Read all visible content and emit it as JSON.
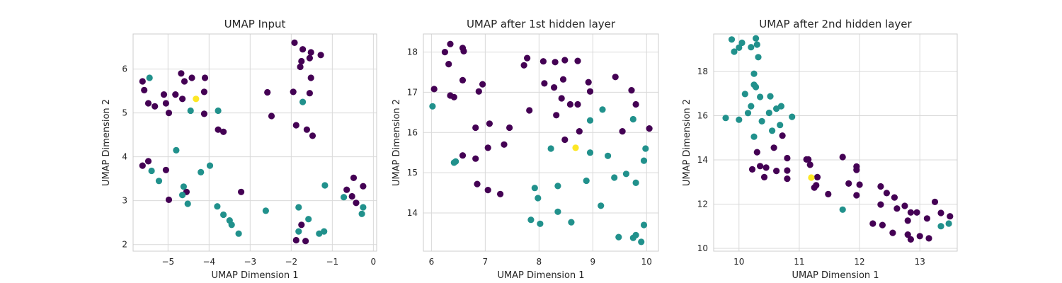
{
  "colors": {
    "class0": "#440154",
    "class1": "#21918c",
    "class2": "#fde725",
    "grid": "#d9d9d9",
    "frame": "#cccccc",
    "text": "#262626"
  },
  "chart_data": [
    {
      "type": "scatter",
      "title": "UMAP Input",
      "xlabel": "UMAP Dimension 1",
      "ylabel": "UMAP Dimension 2",
      "xlim": [
        -5.85,
        0.08
      ],
      "ylim": [
        1.85,
        6.8
      ],
      "xticks": [
        -5,
        -4,
        -3,
        -2,
        -1,
        0
      ],
      "xtick_labels": [
        "−5",
        "−4",
        "−3",
        "−2",
        "−1",
        "0"
      ],
      "yticks": [
        2,
        3,
        4,
        5,
        6
      ],
      "ytick_labels": [
        "2",
        "3",
        "4",
        "5",
        "6"
      ],
      "grid": true,
      "points": [
        [
          -5.62,
          5.72,
          0
        ],
        [
          -5.58,
          5.52,
          0
        ],
        [
          -5.48,
          5.22,
          0
        ],
        [
          -5.32,
          5.15,
          0
        ],
        [
          -5.1,
          5.42,
          0
        ],
        [
          -5.05,
          5.22,
          0
        ],
        [
          -4.98,
          5.0,
          0
        ],
        [
          -4.82,
          5.42,
          0
        ],
        [
          -4.68,
          5.9,
          0
        ],
        [
          -4.6,
          5.72,
          0
        ],
        [
          -4.42,
          5.8,
          0
        ],
        [
          -4.65,
          5.32,
          0
        ],
        [
          -4.1,
          5.8,
          0
        ],
        [
          -4.12,
          5.48,
          0
        ],
        [
          -4.12,
          4.98,
          0
        ],
        [
          -3.78,
          4.62,
          0
        ],
        [
          -3.65,
          4.57,
          0
        ],
        [
          -2.58,
          5.47,
          0
        ],
        [
          -2.48,
          4.93,
          0
        ],
        [
          -1.92,
          6.6,
          0
        ],
        [
          -1.72,
          6.45,
          0
        ],
        [
          -1.52,
          6.38,
          0
        ],
        [
          -1.55,
          6.25,
          0
        ],
        [
          -1.28,
          6.32,
          0
        ],
        [
          -1.75,
          6.18,
          0
        ],
        [
          -1.78,
          6.05,
          0
        ],
        [
          -1.95,
          5.48,
          0
        ],
        [
          -1.52,
          5.8,
          0
        ],
        [
          -1.55,
          5.45,
          0
        ],
        [
          -1.88,
          4.72,
          0
        ],
        [
          -1.62,
          4.62,
          0
        ],
        [
          -1.48,
          4.48,
          0
        ],
        [
          -5.62,
          3.8,
          0
        ],
        [
          -5.48,
          3.9,
          0
        ],
        [
          -5.05,
          3.7,
          0
        ],
        [
          -4.55,
          3.2,
          0
        ],
        [
          -4.98,
          3.02,
          0
        ],
        [
          -3.22,
          3.2,
          0
        ],
        [
          -0.48,
          3.52,
          0
        ],
        [
          -0.65,
          3.25,
          0
        ],
        [
          -0.52,
          3.1,
          0
        ],
        [
          -0.25,
          3.33,
          0
        ],
        [
          -0.42,
          2.95,
          0
        ],
        [
          -1.75,
          2.45,
          0
        ],
        [
          -1.88,
          2.1,
          0
        ],
        [
          -1.65,
          2.08,
          0
        ],
        [
          -5.45,
          5.8,
          1
        ],
        [
          -4.45,
          5.05,
          1
        ],
        [
          -3.78,
          5.05,
          1
        ],
        [
          -1.72,
          5.25,
          1
        ],
        [
          -4.8,
          4.15,
          1
        ],
        [
          -5.4,
          3.68,
          1
        ],
        [
          -5.22,
          3.45,
          1
        ],
        [
          -4.62,
          3.32,
          1
        ],
        [
          -4.52,
          2.93,
          1
        ],
        [
          -4.65,
          3.13,
          1
        ],
        [
          -4.2,
          3.65,
          1
        ],
        [
          -3.98,
          3.8,
          1
        ],
        [
          -3.8,
          2.87,
          1
        ],
        [
          -3.65,
          2.68,
          1
        ],
        [
          -3.5,
          2.55,
          1
        ],
        [
          -3.45,
          2.45,
          1
        ],
        [
          -3.28,
          2.25,
          1
        ],
        [
          -2.62,
          2.77,
          1
        ],
        [
          -1.82,
          2.85,
          1
        ],
        [
          -1.82,
          2.3,
          1
        ],
        [
          -1.58,
          2.58,
          1
        ],
        [
          -1.32,
          2.25,
          1
        ],
        [
          -1.2,
          2.3,
          1
        ],
        [
          -1.18,
          3.35,
          1
        ],
        [
          -0.72,
          3.08,
          1
        ],
        [
          -0.25,
          2.85,
          1
        ],
        [
          -0.28,
          2.7,
          1
        ],
        [
          -4.32,
          5.32,
          2
        ]
      ]
    },
    {
      "type": "scatter",
      "title": "UMAP after 1st hidden layer",
      "xlabel": "UMAP Dimension 1",
      "ylabel": "UMAP Dimension 2",
      "xlim": [
        5.85,
        10.22
      ],
      "ylim": [
        13.05,
        18.45
      ],
      "xticks": [
        6,
        7,
        8,
        9,
        10
      ],
      "xtick_labels": [
        "6",
        "7",
        "8",
        "9",
        "10"
      ],
      "yticks": [
        14,
        15,
        16,
        17,
        18
      ],
      "ytick_labels": [
        "14",
        "15",
        "16",
        "17",
        "18"
      ],
      "grid": true,
      "points": [
        [
          6.05,
          17.08,
          0
        ],
        [
          6.25,
          18.0,
          0
        ],
        [
          6.35,
          18.2,
          0
        ],
        [
          6.32,
          17.7,
          0
        ],
        [
          6.35,
          16.92,
          0
        ],
        [
          6.42,
          16.88,
          0
        ],
        [
          6.58,
          18.1,
          0
        ],
        [
          6.6,
          18.02,
          0
        ],
        [
          6.58,
          17.3,
          0
        ],
        [
          6.88,
          17.02,
          0
        ],
        [
          6.95,
          17.2,
          0
        ],
        [
          6.82,
          16.12,
          0
        ],
        [
          7.08,
          16.22,
          0
        ],
        [
          7.05,
          15.62,
          0
        ],
        [
          6.58,
          15.43,
          0
        ],
        [
          6.82,
          15.35,
          0
        ],
        [
          7.45,
          16.12,
          0
        ],
        [
          7.35,
          15.7,
          0
        ],
        [
          6.85,
          14.72,
          0
        ],
        [
          7.05,
          14.57,
          0
        ],
        [
          7.28,
          14.47,
          0
        ],
        [
          7.72,
          17.67,
          0
        ],
        [
          7.78,
          17.85,
          0
        ],
        [
          7.82,
          16.55,
          0
        ],
        [
          8.08,
          17.77,
          0
        ],
        [
          8.1,
          17.22,
          0
        ],
        [
          8.3,
          17.75,
          0
        ],
        [
          8.48,
          17.8,
          0
        ],
        [
          8.72,
          17.78,
          0
        ],
        [
          8.28,
          17.12,
          0
        ],
        [
          8.45,
          17.32,
          0
        ],
        [
          8.42,
          16.85,
          0
        ],
        [
          8.32,
          16.43,
          0
        ],
        [
          8.58,
          16.7,
          0
        ],
        [
          8.72,
          16.7,
          0
        ],
        [
          8.92,
          17.25,
          0
        ],
        [
          8.95,
          17.02,
          0
        ],
        [
          8.75,
          16.03,
          0
        ],
        [
          8.48,
          15.82,
          0
        ],
        [
          9.42,
          17.38,
          0
        ],
        [
          9.72,
          17.05,
          0
        ],
        [
          9.8,
          16.7,
          0
        ],
        [
          9.55,
          16.03,
          0
        ],
        [
          10.05,
          16.1,
          0
        ],
        [
          6.02,
          16.65,
          1
        ],
        [
          6.45,
          15.28,
          1
        ],
        [
          6.42,
          15.25,
          1
        ],
        [
          8.22,
          15.6,
          1
        ],
        [
          8.95,
          16.3,
          1
        ],
        [
          9.18,
          16.57,
          1
        ],
        [
          9.28,
          15.42,
          1
        ],
        [
          8.95,
          15.5,
          1
        ],
        [
          9.75,
          16.33,
          1
        ],
        [
          9.98,
          15.6,
          1
        ],
        [
          9.95,
          15.3,
          1
        ],
        [
          9.4,
          14.88,
          1
        ],
        [
          9.62,
          14.97,
          1
        ],
        [
          9.8,
          14.75,
          1
        ],
        [
          8.88,
          14.8,
          1
        ],
        [
          8.35,
          14.67,
          1
        ],
        [
          7.92,
          14.62,
          1
        ],
        [
          7.98,
          14.37,
          1
        ],
        [
          8.35,
          14.03,
          1
        ],
        [
          9.15,
          14.18,
          1
        ],
        [
          7.85,
          13.83,
          1
        ],
        [
          8.02,
          13.73,
          1
        ],
        [
          8.6,
          13.77,
          1
        ],
        [
          9.48,
          13.4,
          1
        ],
        [
          9.75,
          13.38,
          1
        ],
        [
          9.8,
          13.45,
          1
        ],
        [
          9.95,
          13.7,
          1
        ],
        [
          9.9,
          13.28,
          1
        ],
        [
          8.68,
          15.62,
          2
        ]
      ]
    },
    {
      "type": "scatter",
      "title": "UMAP after 2nd hidden layer",
      "xlabel": "UMAP Dimension 1",
      "ylabel": "UMAP Dimension 2",
      "xlim": [
        9.58,
        13.62
      ],
      "ylim": [
        9.87,
        19.7
      ],
      "xticks": [
        10,
        11,
        12,
        13
      ],
      "xtick_labels": [
        "10",
        "11",
        "12",
        "13"
      ],
      "yticks": [
        10,
        12,
        14,
        16,
        18
      ],
      "ytick_labels": [
        "10",
        "12",
        "14",
        "16",
        "18"
      ],
      "grid": true,
      "points": [
        [
          10.3,
          14.35,
          0
        ],
        [
          10.22,
          13.57,
          0
        ],
        [
          10.35,
          13.72,
          0
        ],
        [
          10.45,
          13.65,
          0
        ],
        [
          10.42,
          13.22,
          0
        ],
        [
          10.58,
          14.55,
          0
        ],
        [
          10.62,
          13.5,
          0
        ],
        [
          10.72,
          15.1,
          0
        ],
        [
          10.8,
          14.08,
          0
        ],
        [
          10.8,
          13.52,
          0
        ],
        [
          10.8,
          13.15,
          0
        ],
        [
          11.12,
          14.02,
          0
        ],
        [
          11.15,
          14.02,
          0
        ],
        [
          11.18,
          13.78,
          0
        ],
        [
          11.3,
          13.22,
          0
        ],
        [
          11.25,
          12.75,
          0
        ],
        [
          11.28,
          12.85,
          0
        ],
        [
          11.48,
          12.45,
          0
        ],
        [
          11.72,
          14.13,
          0
        ],
        [
          11.82,
          12.93,
          0
        ],
        [
          11.95,
          13.7,
          0
        ],
        [
          11.95,
          13.55,
          0
        ],
        [
          12.0,
          12.88,
          0
        ],
        [
          11.95,
          12.4,
          0
        ],
        [
          12.35,
          12.8,
          0
        ],
        [
          12.45,
          12.5,
          0
        ],
        [
          12.35,
          11.98,
          0
        ],
        [
          12.58,
          12.3,
          0
        ],
        [
          12.62,
          11.8,
          0
        ],
        [
          12.22,
          11.12,
          0
        ],
        [
          12.38,
          11.05,
          0
        ],
        [
          12.55,
          10.7,
          0
        ],
        [
          12.75,
          11.92,
          0
        ],
        [
          12.8,
          11.25,
          0
        ],
        [
          12.85,
          11.62,
          0
        ],
        [
          12.95,
          11.62,
          0
        ],
        [
          12.8,
          10.62,
          0
        ],
        [
          12.85,
          10.4,
          0
        ],
        [
          13.0,
          10.55,
          0
        ],
        [
          13.12,
          11.35,
          0
        ],
        [
          13.15,
          10.45,
          0
        ],
        [
          13.25,
          12.1,
          0
        ],
        [
          13.35,
          11.6,
          0
        ],
        [
          13.5,
          11.45,
          0
        ],
        [
          9.88,
          19.45,
          1
        ],
        [
          9.92,
          18.9,
          1
        ],
        [
          10.0,
          19.08,
          1
        ],
        [
          10.05,
          19.3,
          1
        ],
        [
          10.2,
          19.1,
          1
        ],
        [
          10.28,
          19.5,
          1
        ],
        [
          10.3,
          19.22,
          1
        ],
        [
          10.32,
          18.65,
          1
        ],
        [
          10.25,
          17.9,
          1
        ],
        [
          10.25,
          17.4,
          1
        ],
        [
          10.28,
          17.3,
          1
        ],
        [
          10.1,
          16.98,
          1
        ],
        [
          10.35,
          16.85,
          1
        ],
        [
          10.52,
          16.88,
          1
        ],
        [
          10.2,
          16.43,
          1
        ],
        [
          10.15,
          16.12,
          1
        ],
        [
          10.0,
          15.82,
          1
        ],
        [
          9.78,
          15.9,
          1
        ],
        [
          10.38,
          15.75,
          1
        ],
        [
          10.5,
          16.13,
          1
        ],
        [
          10.62,
          16.32,
          1
        ],
        [
          10.7,
          16.43,
          1
        ],
        [
          10.88,
          15.95,
          1
        ],
        [
          10.68,
          15.58,
          1
        ],
        [
          10.55,
          15.32,
          1
        ],
        [
          10.25,
          15.05,
          1
        ],
        [
          11.72,
          11.75,
          1
        ],
        [
          13.35,
          11.0,
          1
        ],
        [
          13.48,
          11.12,
          1
        ],
        [
          11.2,
          13.2,
          2
        ]
      ]
    }
  ]
}
